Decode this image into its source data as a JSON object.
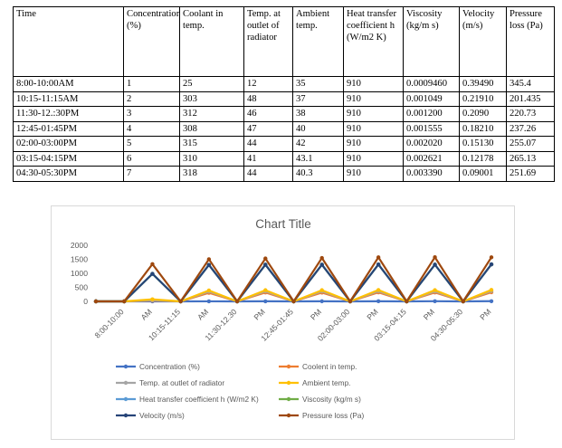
{
  "table": {
    "headers": [
      "Time",
      "Concentration (%)",
      "Coolant in temp.",
      "Temp. at outlet of radiator",
      "Ambient temp.",
      "Heat transfer coefficient h (W/m2 K)",
      "Viscosity (kg/m s)",
      "Velocity (m/s)",
      "Pressure loss (Pa)"
    ],
    "rows": [
      [
        "8:00-10:00AM",
        "1",
        "25",
        "12",
        "35",
        "910",
        "0.0009460",
        "0.39490",
        "345.4"
      ],
      [
        "10:15-11:15AM",
        "2",
        "303",
        "48",
        "37",
        "910",
        "0.001049",
        "0.21910",
        "201.435"
      ],
      [
        "11:30-12.:30PM",
        "3",
        "312",
        "46",
        "38",
        "910",
        "0.001200",
        "0.2090",
        "220.73"
      ],
      [
        "12:45-01:45PM",
        "4",
        "308",
        "47",
        "40",
        "910",
        "0.001555",
        "0.18210",
        "237.26"
      ],
      [
        "02:00-03:00PM",
        "5",
        "315",
        "44",
        "42",
        "910",
        "0.002020",
        "0.15130",
        "255.07"
      ],
      [
        "03:15-04:15PM",
        "6",
        "310",
        "41",
        "43.1",
        "910",
        "0.002621",
        "0.12178",
        "265.13"
      ],
      [
        "04:30-05:30PM",
        "7",
        "318",
        "44",
        "40.3",
        "910",
        "0.003390",
        "0.09001",
        "251.69"
      ]
    ]
  },
  "chart_data": {
    "type": "line",
    "stacked": true,
    "title": "Chart Title",
    "categories": [
      "",
      "8:00-10:00",
      "AM",
      "10:15-11:15",
      "AM",
      "11:30-12.30",
      "PM",
      "12:45-01:45",
      "PM",
      "02:00-03:00",
      "PM",
      "03:15-04:15",
      "PM",
      "04:30-05:30",
      "PM"
    ],
    "ylim": [
      0,
      2000
    ],
    "yticks": [
      0,
      500,
      1000,
      1500,
      2000
    ],
    "grid": false,
    "legend_position": "bottom",
    "series": [
      {
        "name": "Concentration (%)",
        "color": "#4472C4",
        "values": [
          0,
          0,
          1,
          0,
          2,
          0,
          3,
          0,
          4,
          0,
          5,
          0,
          6,
          0,
          7
        ]
      },
      {
        "name": "Coolent in temp.",
        "color": "#ED7D31",
        "values": [
          0,
          0,
          25,
          0,
          303,
          0,
          312,
          0,
          308,
          0,
          315,
          0,
          310,
          0,
          318
        ]
      },
      {
        "name": "Temp. at outlet of radiator",
        "color": "#A5A5A5",
        "values": [
          0,
          0,
          12,
          0,
          48,
          0,
          46,
          0,
          47,
          0,
          44,
          0,
          41,
          0,
          44
        ]
      },
      {
        "name": "Ambient temp.",
        "color": "#FFC000",
        "values": [
          0,
          0,
          35,
          0,
          37,
          0,
          38,
          0,
          40,
          0,
          42,
          0,
          43.1,
          0,
          40.3
        ]
      },
      {
        "name": "Heat transfer coefficient h (W/m2 K)",
        "color": "#5B9BD5",
        "values": [
          0,
          0,
          910,
          0,
          910,
          0,
          910,
          0,
          910,
          0,
          910,
          0,
          910,
          0,
          910
        ]
      },
      {
        "name": "Viscosity (kg/m s)",
        "color": "#70AD47",
        "values": [
          0,
          0,
          0.000946,
          0,
          0.001049,
          0,
          0.0012,
          0,
          0.001555,
          0,
          0.00202,
          0,
          0.002621,
          0,
          0.00339
        ]
      },
      {
        "name": "Velocity (m/s)",
        "color": "#264478",
        "values": [
          0,
          0,
          0.3949,
          0,
          0.2191,
          0,
          0.209,
          0,
          0.1821,
          0,
          0.1513,
          0,
          0.12178,
          0,
          0.09001
        ]
      },
      {
        "name": "Pressure loss (Pa)",
        "color": "#9E480E",
        "values": [
          0,
          0,
          345.4,
          0,
          201.435,
          0,
          220.73,
          0,
          237.26,
          0,
          255.07,
          0,
          265.13,
          0,
          251.69
        ]
      }
    ]
  }
}
